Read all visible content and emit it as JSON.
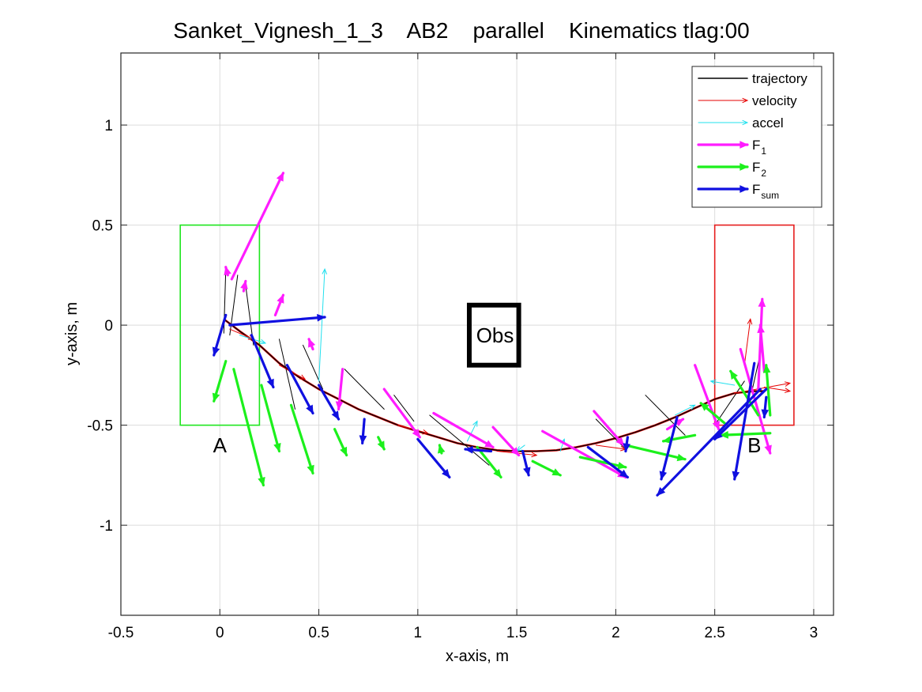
{
  "chart_data": {
    "type": "line",
    "title": "Sanket_Vignesh_1_3    AB2    parallel    Kinematics tlag:00",
    "xlabel": "x-axis, m",
    "ylabel": "y-axis, m",
    "xlim": [
      -0.5,
      3.1
    ],
    "ylim": [
      -1.45,
      1.36
    ],
    "xticks": [
      -0.5,
      0,
      0.5,
      1,
      1.5,
      2,
      2.5,
      3
    ],
    "xtick_labels": [
      "-0.5",
      "0",
      "0.5",
      "1",
      "1.5",
      "2",
      "2.5",
      "3"
    ],
    "yticks": [
      -1,
      -0.5,
      0,
      0.5,
      1
    ],
    "ytick_labels": [
      "-1",
      "-0.5",
      "0",
      "0.5",
      "1"
    ],
    "grid": true,
    "legend_position": "top-right",
    "colors": {
      "trajectory": "#000000",
      "velocity": "#e60000",
      "accel": "#22e0ee",
      "F1": "#ff1cff",
      "F2": "#1cf01c",
      "Fsum": "#1010e0",
      "startBox": "#1ee61e",
      "goalBox": "#e61e1e",
      "obstacle": "#000000"
    },
    "legend": [
      {
        "key": "trajectory",
        "label": "trajectory",
        "sub": ""
      },
      {
        "key": "velocity",
        "label": "velocity",
        "sub": ""
      },
      {
        "key": "accel",
        "label": "accel",
        "sub": ""
      },
      {
        "key": "F1",
        "label": "F",
        "sub": "1"
      },
      {
        "key": "F2",
        "label": "F",
        "sub": "2"
      },
      {
        "key": "Fsum",
        "label": "F",
        "sub": "sum"
      }
    ],
    "regions": {
      "start": {
        "label": "A",
        "x": [
          -0.2,
          0.2
        ],
        "y": [
          -0.5,
          0.5
        ],
        "label_at": [
          0,
          -0.6
        ]
      },
      "goal": {
        "label": "B",
        "x": [
          2.5,
          2.9
        ],
        "y": [
          -0.5,
          0.5
        ],
        "label_at": [
          2.7,
          -0.6
        ]
      },
      "obstacle": {
        "label": "Obs",
        "x": [
          1.26,
          1.51
        ],
        "y": [
          -0.2,
          0.1
        ],
        "label_at": [
          1.39,
          -0.05
        ]
      }
    },
    "trajectory": [
      [
        0.02,
        0.03
      ],
      [
        0.1,
        -0.03
      ],
      [
        0.2,
        -0.1
      ],
      [
        0.3,
        -0.19
      ],
      [
        0.4,
        -0.26
      ],
      [
        0.5,
        -0.32
      ],
      [
        0.6,
        -0.37
      ],
      [
        0.7,
        -0.42
      ],
      [
        0.8,
        -0.46
      ],
      [
        0.9,
        -0.5
      ],
      [
        1.0,
        -0.53
      ],
      [
        1.1,
        -0.56
      ],
      [
        1.2,
        -0.59
      ],
      [
        1.3,
        -0.61
      ],
      [
        1.4,
        -0.625
      ],
      [
        1.5,
        -0.63
      ],
      [
        1.6,
        -0.63
      ],
      [
        1.7,
        -0.625
      ],
      [
        1.8,
        -0.61
      ],
      [
        1.9,
        -0.59
      ],
      [
        2.0,
        -0.565
      ],
      [
        2.1,
        -0.535
      ],
      [
        2.2,
        -0.5
      ],
      [
        2.3,
        -0.46
      ],
      [
        2.4,
        -0.415
      ],
      [
        2.5,
        -0.37
      ],
      [
        2.6,
        -0.34
      ],
      [
        2.7,
        -0.33
      ],
      [
        2.75,
        -0.33
      ]
    ],
    "vectors": [
      {
        "s": "F1",
        "x": 0.06,
        "y": 0.23,
        "dx": 0.26,
        "dy": 0.53
      },
      {
        "s": "F1",
        "x": 0.04,
        "y": 0.25,
        "dx": -0.01,
        "dy": 0.04
      },
      {
        "s": "F1",
        "x": 0.12,
        "y": 0.17,
        "dx": 0.01,
        "dy": 0.05
      },
      {
        "s": "F1",
        "x": 0.28,
        "y": 0.05,
        "dx": 0.04,
        "dy": 0.1
      },
      {
        "s": "F1",
        "x": 0.47,
        "y": -0.12,
        "dx": -0.02,
        "dy": 0.05
      },
      {
        "s": "F1",
        "x": 0.62,
        "y": -0.22,
        "dx": -0.02,
        "dy": -0.2
      },
      {
        "s": "F1",
        "x": 0.83,
        "y": -0.32,
        "dx": 0.18,
        "dy": -0.24
      },
      {
        "s": "F1",
        "x": 1.08,
        "y": -0.44,
        "dx": 0.3,
        "dy": -0.17
      },
      {
        "s": "F1",
        "x": 1.38,
        "y": -0.51,
        "dx": 0.13,
        "dy": -0.14
      },
      {
        "s": "F1",
        "x": 1.63,
        "y": -0.53,
        "dx": 0.42,
        "dy": -0.23
      },
      {
        "s": "F1",
        "x": 1.89,
        "y": -0.43,
        "dx": 0.15,
        "dy": -0.17
      },
      {
        "s": "F1",
        "x": 2.26,
        "y": -0.52,
        "dx": 0.08,
        "dy": 0.05
      },
      {
        "s": "F1",
        "x": 2.4,
        "y": -0.2,
        "dx": 0.12,
        "dy": -0.32
      },
      {
        "s": "F1",
        "x": 2.63,
        "y": -0.12,
        "dx": 0.15,
        "dy": -0.52
      },
      {
        "s": "F1",
        "x": 2.72,
        "y": -0.32,
        "dx": 0.02,
        "dy": 0.45
      },
      {
        "s": "F1",
        "x": 2.75,
        "y": -0.23,
        "dx": -0.02,
        "dy": 0.23
      },
      {
        "s": "F2",
        "x": 0.03,
        "y": -0.18,
        "dx": -0.06,
        "dy": -0.2
      },
      {
        "s": "F2",
        "x": 0.07,
        "y": -0.22,
        "dx": 0.15,
        "dy": -0.58
      },
      {
        "s": "F2",
        "x": 0.21,
        "y": -0.3,
        "dx": 0.09,
        "dy": -0.33
      },
      {
        "s": "F2",
        "x": 0.36,
        "y": -0.4,
        "dx": 0.11,
        "dy": -0.34
      },
      {
        "s": "F2",
        "x": 0.58,
        "y": -0.52,
        "dx": 0.06,
        "dy": -0.13
      },
      {
        "s": "F2",
        "x": 0.8,
        "y": -0.56,
        "dx": 0.03,
        "dy": -0.06
      },
      {
        "s": "F2",
        "x": 1.12,
        "y": -0.64,
        "dx": -0.01,
        "dy": 0.04
      },
      {
        "s": "F2",
        "x": 1.3,
        "y": -0.61,
        "dx": 0.12,
        "dy": -0.15
      },
      {
        "s": "F2",
        "x": 1.58,
        "y": -0.68,
        "dx": 0.14,
        "dy": -0.07
      },
      {
        "s": "F2",
        "x": 1.82,
        "y": -0.66,
        "dx": 0.23,
        "dy": -0.05
      },
      {
        "s": "F2",
        "x": 2.05,
        "y": -0.6,
        "dx": 0.3,
        "dy": -0.07
      },
      {
        "s": "F2",
        "x": 2.4,
        "y": -0.55,
        "dx": -0.16,
        "dy": -0.03
      },
      {
        "s": "F2",
        "x": 2.78,
        "y": -0.54,
        "dx": -0.25,
        "dy": -0.01
      },
      {
        "s": "F2",
        "x": 2.55,
        "y": -0.49,
        "dx": -0.12,
        "dy": 0.1
      },
      {
        "s": "F2",
        "x": 2.72,
        "y": -0.45,
        "dx": -0.14,
        "dy": 0.22
      },
      {
        "s": "F2",
        "x": 2.78,
        "y": -0.45,
        "dx": -0.02,
        "dy": 0.25
      },
      {
        "s": "Fsum",
        "x": 0.03,
        "y": 0.05,
        "dx": -0.06,
        "dy": -0.2
      },
      {
        "s": "Fsum",
        "x": 0.05,
        "y": 0.0,
        "dx": 0.48,
        "dy": 0.04
      },
      {
        "s": "Fsum",
        "x": 0.16,
        "y": -0.05,
        "dx": 0.11,
        "dy": -0.26
      },
      {
        "s": "Fsum",
        "x": 0.34,
        "y": -0.2,
        "dx": 0.13,
        "dy": -0.24
      },
      {
        "s": "Fsum",
        "x": 0.5,
        "y": -0.3,
        "dx": 0.1,
        "dy": -0.17
      },
      {
        "s": "Fsum",
        "x": 0.73,
        "y": -0.47,
        "dx": -0.01,
        "dy": -0.12
      },
      {
        "s": "Fsum",
        "x": 1.0,
        "y": -0.57,
        "dx": 0.16,
        "dy": -0.19
      },
      {
        "s": "Fsum",
        "x": 1.37,
        "y": -0.63,
        "dx": -0.13,
        "dy": 0.01
      },
      {
        "s": "Fsum",
        "x": 1.53,
        "y": -0.63,
        "dx": 0.03,
        "dy": -0.12
      },
      {
        "s": "Fsum",
        "x": 1.86,
        "y": -0.61,
        "dx": 0.2,
        "dy": -0.15
      },
      {
        "s": "Fsum",
        "x": 2.06,
        "y": -0.56,
        "dx": -0.01,
        "dy": -0.07
      },
      {
        "s": "Fsum",
        "x": 2.31,
        "y": -0.46,
        "dx": -0.08,
        "dy": -0.31
      },
      {
        "s": "Fsum",
        "x": 2.73,
        "y": -0.32,
        "dx": -0.52,
        "dy": -0.53
      },
      {
        "s": "Fsum",
        "x": 2.7,
        "y": -0.19,
        "dx": -0.1,
        "dy": -0.58
      },
      {
        "s": "Fsum",
        "x": 2.76,
        "y": -0.32,
        "dx": -0.26,
        "dy": -0.25
      },
      {
        "s": "Fsum",
        "x": 2.76,
        "y": -0.36,
        "dx": -0.01,
        "dy": -0.1
      },
      {
        "s": "velocity",
        "x": 0.05,
        "y": -0.02,
        "dx": 0.12,
        "dy": -0.05
      },
      {
        "s": "velocity",
        "x": 0.3,
        "y": -0.2,
        "dx": 0.13,
        "dy": -0.07
      },
      {
        "s": "velocity",
        "x": 0.9,
        "y": -0.5,
        "dx": 0.15,
        "dy": -0.04
      },
      {
        "s": "velocity",
        "x": 1.4,
        "y": -0.63,
        "dx": 0.2,
        "dy": -0.02
      },
      {
        "s": "velocity",
        "x": 1.9,
        "y": -0.6,
        "dx": 0.15,
        "dy": -0.02
      },
      {
        "s": "velocity",
        "x": 2.6,
        "y": -0.34,
        "dx": 0.28,
        "dy": 0.05
      },
      {
        "s": "velocity",
        "x": 2.65,
        "y": -0.2,
        "dx": 0.03,
        "dy": 0.23
      },
      {
        "s": "velocity",
        "x": 2.75,
        "y": -0.31,
        "dx": 0.13,
        "dy": -0.02
      },
      {
        "s": "accel",
        "x": 0.5,
        "y": -0.28,
        "dx": 0.03,
        "dy": 0.56
      },
      {
        "s": "accel",
        "x": 0.1,
        "y": -0.05,
        "dx": 0.13,
        "dy": -0.04
      },
      {
        "s": "accel",
        "x": 1.25,
        "y": -0.58,
        "dx": 0.05,
        "dy": 0.1
      },
      {
        "s": "accel",
        "x": 1.54,
        "y": -0.6,
        "dx": -0.04,
        "dy": -0.03
      },
      {
        "s": "accel",
        "x": 2.3,
        "y": -0.45,
        "dx": 0.1,
        "dy": 0.05
      },
      {
        "s": "accel",
        "x": 2.6,
        "y": -0.3,
        "dx": -0.12,
        "dy": 0.02
      },
      {
        "s": "accel",
        "x": 1.72,
        "y": -0.63,
        "dx": 0.02,
        "dy": 0.06
      },
      {
        "s": "trajectory",
        "x": 0.03,
        "y": 0.28,
        "dx": -0.01,
        "dy": -0.32
      },
      {
        "s": "trajectory",
        "x": 0.09,
        "y": 0.25,
        "dx": -0.04,
        "dy": -0.3
      },
      {
        "s": "trajectory",
        "x": 0.13,
        "y": 0.2,
        "dx": 0.04,
        "dy": -0.3
      },
      {
        "s": "trajectory",
        "x": 0.3,
        "y": -0.07,
        "dx": 0.08,
        "dy": -0.35
      },
      {
        "s": "trajectory",
        "x": 0.52,
        "y": -0.32,
        "dx": -0.1,
        "dy": 0.22
      },
      {
        "s": "trajectory",
        "x": 0.63,
        "y": -0.22,
        "dx": 0.2,
        "dy": -0.2
      },
      {
        "s": "trajectory",
        "x": 0.88,
        "y": -0.35,
        "dx": 0.1,
        "dy": -0.13
      },
      {
        "s": "trajectory",
        "x": 1.06,
        "y": -0.45,
        "dx": 0.3,
        "dy": -0.25
      },
      {
        "s": "trajectory",
        "x": 1.9,
        "y": -0.47,
        "dx": 0.14,
        "dy": -0.14
      },
      {
        "s": "trajectory",
        "x": 2.15,
        "y": -0.35,
        "dx": 0.2,
        "dy": -0.2
      },
      {
        "s": "trajectory",
        "x": 2.65,
        "y": -0.28,
        "dx": -0.15,
        "dy": -0.22
      },
      {
        "s": "trajectory",
        "x": 2.74,
        "y": -0.1,
        "dx": -0.05,
        "dy": -0.22
      }
    ]
  }
}
